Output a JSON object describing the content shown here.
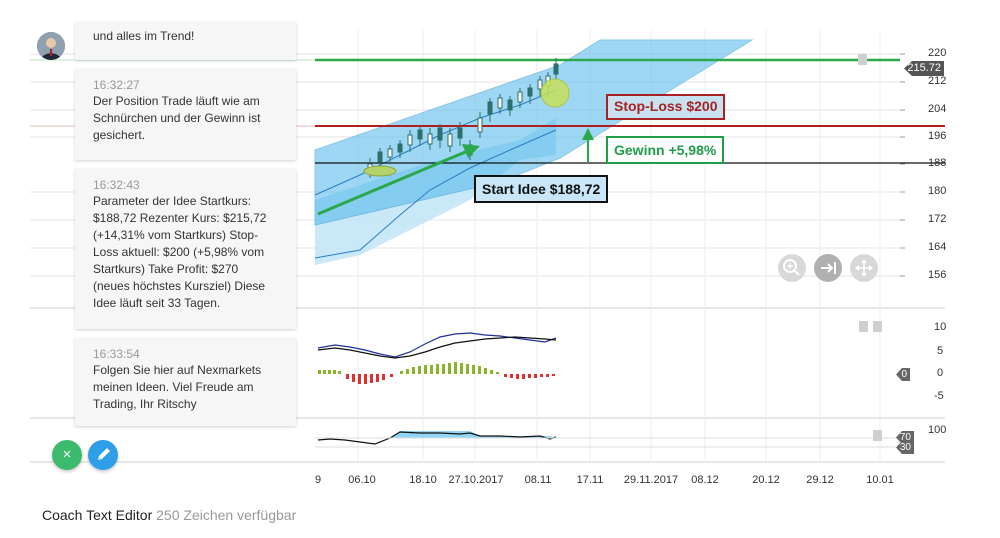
{
  "colors": {
    "green_line": "#2aa84a",
    "red_line": "#b01e1e",
    "channel_fill": "#4fb8ea",
    "macd_positive": "#8ab52a",
    "macd_negative": "#e03030",
    "stop_loss_text": "#a82222",
    "gain_text": "#1f9e4a",
    "start_border": "#111111",
    "fab_green": "#3dbb6c",
    "fab_blue": "#2e9ee8"
  },
  "avatar": {
    "icon": "user-avatar-icon"
  },
  "chat": {
    "messages": [
      {
        "time": "",
        "text": "und alles im Trend!"
      },
      {
        "time": "16:32:27",
        "text": "Der Position Trade läuft wie am Schnürchen und der Gewinn ist gesichert."
      },
      {
        "time": "16:32:43",
        "text": "Parameter der Idee Startkurs: $188,72 Rezenter Kurs: $215,72 (+14,31% vom Startkurs) Stop-Loss aktuell: $200 (+5,98% vom Startkurs) Take Profit: $270 (neues höchstes Kursziel) Diese Idee läuft seit 33 Tagen."
      },
      {
        "time": "16:33:54",
        "text": "Folgen Sie hier auf Nexmarkets meinen Ideen. Viel Freude am Trading, Ihr Ritschy"
      }
    ]
  },
  "annotations": {
    "stop_loss": "Stop-Loss $200",
    "gain": "Gewinn +5,98%",
    "start": "Start Idee $188,72"
  },
  "chart": {
    "price_axis": [
      "220",
      "212",
      "204",
      "196",
      "188",
      "180",
      "172",
      "164",
      "156"
    ],
    "current_price_tag": "215.72",
    "macd_axis": [
      "10",
      "5",
      "0",
      "-5"
    ],
    "macd_tag": "0",
    "rsi_axis": [
      "100"
    ],
    "rsi_tags": [
      "70",
      "30"
    ],
    "date_axis": [
      "9",
      "06.10",
      "18.10",
      "27.10.2017",
      "08.11",
      "17.11",
      "29.11.2017",
      "08.12",
      "20.12",
      "29.12",
      "10.01"
    ],
    "levels": {
      "take_profit_line": 215.72,
      "stop_loss": 200,
      "start": 188.72
    }
  },
  "controls": {
    "zoom_in_icon": "zoom-in-icon",
    "scroll_end_icon": "scroll-to-end-icon",
    "pan_icon": "pan-icon",
    "close_button_icon": "close-icon",
    "edit_button_icon": "pencil-icon"
  },
  "footer": {
    "title": "Coach Text Editor",
    "counter": "250 Zeichen verfügbar"
  }
}
